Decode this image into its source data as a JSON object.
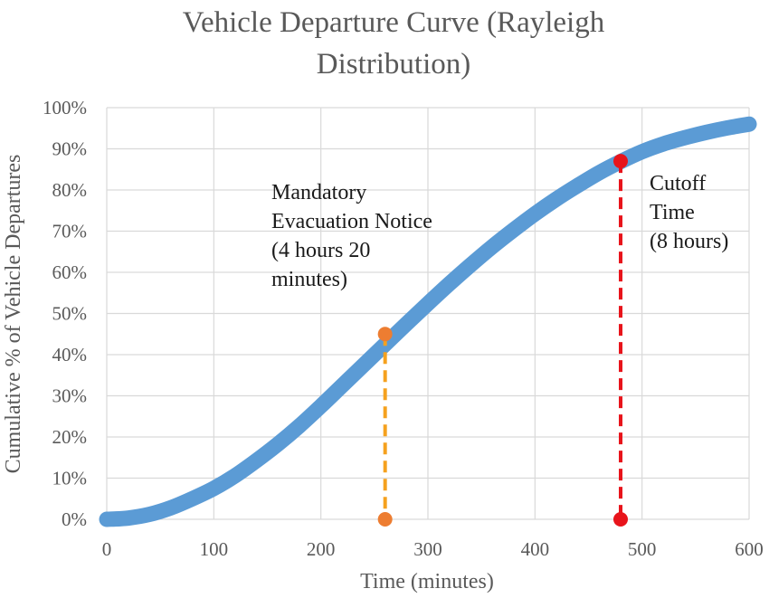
{
  "chart_data": {
    "type": "line",
    "title_lines": [
      "Vehicle Departure Curve (Rayleigh",
      "Distribution)"
    ],
    "xlabel": "Time (minutes)",
    "ylabel": "Cumulative % of Vehicle Departures",
    "xlim": [
      0,
      600
    ],
    "ylim": [
      0,
      100
    ],
    "x_ticks": [
      "0",
      "100",
      "200",
      "300",
      "400",
      "500",
      "600"
    ],
    "y_ticks": [
      "0%",
      "10%",
      "20%",
      "30%",
      "40%",
      "50%",
      "60%",
      "70%",
      "80%",
      "90%",
      "100%"
    ],
    "grid": true,
    "series": [
      {
        "color": "#5B9BD5",
        "x": [
          0,
          20,
          40,
          60,
          80,
          100,
          120,
          140,
          160,
          180,
          200,
          220,
          240,
          260,
          280,
          300,
          320,
          340,
          360,
          380,
          400,
          420,
          440,
          460,
          480,
          500,
          520,
          540,
          560,
          580,
          600
        ],
        "y": [
          0,
          0.3,
          1.2,
          2.8,
          5,
          7.5,
          10.6,
          14.3,
          18.3,
          22.7,
          27.5,
          32.5,
          37.5,
          42.5,
          47.5,
          52.4,
          57.2,
          61.8,
          66.2,
          70.3,
          74.2,
          77.8,
          81.1,
          84.2,
          86.9,
          89.3,
          91.2,
          92.7,
          94.0,
          95.1,
          96.0
        ]
      }
    ],
    "markers": [
      {
        "label_lines": [
          "Mandatory",
          "Evacuation Notice",
          "(4 hours 20",
          "minutes)"
        ],
        "x": 260,
        "y": 45,
        "color": "#F5A11E",
        "dot_color": "#ED7D31"
      },
      {
        "label_lines": [
          "Cutoff",
          "Time",
          "(8 hours)"
        ],
        "x": 480,
        "y": 87,
        "color": "#E8141B",
        "dot_color": "#E8141B"
      }
    ]
  }
}
